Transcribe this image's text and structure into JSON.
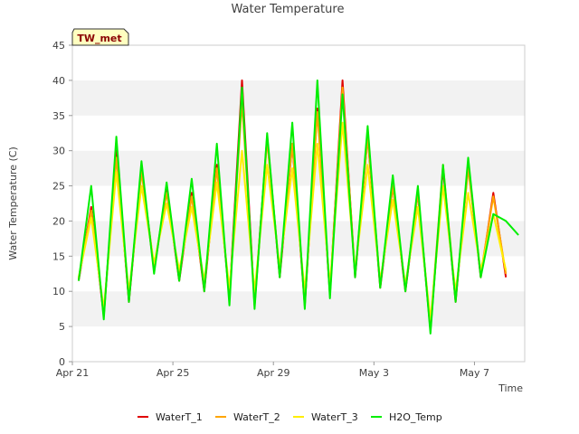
{
  "chart_data": {
    "type": "line",
    "title": "Water Temperature",
    "xlabel": "Time",
    "ylabel": "Water Temperature (C)",
    "site_badge": "TW_met",
    "ylim": [
      0,
      45
    ],
    "yticks": [
      0,
      5,
      10,
      15,
      20,
      25,
      30,
      35,
      40,
      45
    ],
    "xlim": [
      "2024-04-21",
      "2024-05-09"
    ],
    "xticks": [
      {
        "date": "2024-04-21",
        "label": "Apr 21"
      },
      {
        "date": "2024-04-25",
        "label": "Apr 25"
      },
      {
        "date": "2024-04-29",
        "label": "Apr 29"
      },
      {
        "date": "2024-05-03",
        "label": "May 3"
      },
      {
        "date": "2024-05-07",
        "label": "May 7"
      }
    ],
    "grid": "horizontal bands",
    "legend_position": "bottom",
    "series": [
      {
        "name": "WaterT_1",
        "color": "#e00000",
        "x": [
          "2024-04-21T06:00",
          "2024-04-21T18:00",
          "2024-04-22T06:00",
          "2024-04-22T18:00",
          "2024-04-23T06:00",
          "2024-04-23T18:00",
          "2024-04-24T06:00",
          "2024-04-24T18:00",
          "2024-04-25T06:00",
          "2024-04-25T18:00",
          "2024-04-26T06:00",
          "2024-04-26T18:00",
          "2024-04-27T06:00",
          "2024-04-27T18:00",
          "2024-04-28T06:00",
          "2024-04-28T18:00",
          "2024-04-29T06:00",
          "2024-04-29T18:00",
          "2024-04-30T06:00",
          "2024-04-30T18:00",
          "2024-05-01T06:00",
          "2024-05-01T18:00",
          "2024-05-02T06:00",
          "2024-05-02T18:00",
          "2024-05-03T06:00",
          "2024-05-03T18:00",
          "2024-05-04T06:00",
          "2024-05-04T18:00",
          "2024-05-05T06:00",
          "2024-05-05T18:00",
          "2024-05-06T06:00",
          "2024-05-06T18:00",
          "2024-05-07T06:00",
          "2024-05-07T18:00",
          "2024-05-08T06:00",
          "2024-05-08T18:00"
        ],
        "y": [
          11.5,
          22,
          6.5,
          30,
          8.5,
          27.5,
          13,
          24.5,
          11.5,
          24,
          10,
          28,
          9,
          40,
          8,
          32,
          12,
          31,
          8,
          36,
          9.5,
          40,
          12,
          32,
          10.5,
          25,
          10,
          24,
          4.5,
          27.5,
          8.5,
          28,
          12,
          24,
          12,
          null
        ]
      },
      {
        "name": "WaterT_2",
        "color": "#ffa500",
        "x": [
          "2024-04-21T06:00",
          "2024-04-21T18:00",
          "2024-04-22T06:00",
          "2024-04-22T18:00",
          "2024-04-23T06:00",
          "2024-04-23T18:00",
          "2024-04-24T06:00",
          "2024-04-24T18:00",
          "2024-04-25T06:00",
          "2024-04-25T18:00",
          "2024-04-26T06:00",
          "2024-04-26T18:00",
          "2024-04-27T06:00",
          "2024-04-27T18:00",
          "2024-04-28T06:00",
          "2024-04-28T18:00",
          "2024-04-29T06:00",
          "2024-04-29T18:00",
          "2024-04-30T06:00",
          "2024-04-30T18:00",
          "2024-05-01T06:00",
          "2024-05-01T18:00",
          "2024-05-02T06:00",
          "2024-05-02T18:00",
          "2024-05-03T06:00",
          "2024-05-03T18:00",
          "2024-05-04T06:00",
          "2024-05-04T18:00",
          "2024-05-05T06:00",
          "2024-05-05T18:00",
          "2024-05-06T06:00",
          "2024-05-06T18:00",
          "2024-05-07T06:00",
          "2024-05-07T18:00",
          "2024-05-08T06:00",
          "2024-05-08T18:00"
        ],
        "y": [
          11.8,
          21.5,
          7,
          29,
          9,
          27,
          13.5,
          24,
          12,
          23.5,
          10.5,
          27.5,
          9.5,
          37,
          8.5,
          31.5,
          12.5,
          31,
          8.5,
          35.5,
          10,
          39,
          12.5,
          32,
          11,
          25,
          10.5,
          24,
          5,
          28,
          9,
          27.5,
          12.5,
          23.5,
          12.5,
          null
        ]
      },
      {
        "name": "WaterT_3",
        "color": "#ffee00",
        "x": [
          "2024-04-21T06:00",
          "2024-04-21T18:00",
          "2024-04-22T06:00",
          "2024-04-22T18:00",
          "2024-04-23T06:00",
          "2024-04-23T18:00",
          "2024-04-24T06:00",
          "2024-04-24T18:00",
          "2024-04-25T06:00",
          "2024-04-25T18:00",
          "2024-04-26T06:00",
          "2024-04-26T18:00",
          "2024-04-27T06:00",
          "2024-04-27T18:00",
          "2024-04-28T06:00",
          "2024-04-28T18:00",
          "2024-04-29T06:00",
          "2024-04-29T18:00",
          "2024-04-30T06:00",
          "2024-04-30T18:00",
          "2024-05-01T06:00",
          "2024-05-01T18:00",
          "2024-05-02T06:00",
          "2024-05-02T18:00",
          "2024-05-03T06:00",
          "2024-05-03T18:00",
          "2024-05-04T06:00",
          "2024-05-04T18:00",
          "2024-05-05T06:00",
          "2024-05-05T18:00",
          "2024-05-06T06:00",
          "2024-05-06T18:00",
          "2024-05-07T06:00",
          "2024-05-07T18:00",
          "2024-05-08T06:00",
          "2024-05-08T18:00"
        ],
        "y": [
          12,
          20.5,
          7.5,
          27,
          10,
          25,
          14,
          22.5,
          13,
          22,
          11.5,
          25.5,
          10.5,
          30,
          10,
          28,
          13.5,
          27.5,
          10,
          31,
          11,
          34,
          13,
          28,
          11.5,
          23,
          11,
          22,
          6,
          25,
          10,
          24,
          13,
          21,
          13,
          null
        ]
      },
      {
        "name": "H2O_Temp",
        "color": "#00ee00",
        "x": [
          "2024-04-21T06:00",
          "2024-04-21T18:00",
          "2024-04-22T06:00",
          "2024-04-22T18:00",
          "2024-04-23T06:00",
          "2024-04-23T18:00",
          "2024-04-24T06:00",
          "2024-04-24T18:00",
          "2024-04-25T06:00",
          "2024-04-25T18:00",
          "2024-04-26T06:00",
          "2024-04-26T18:00",
          "2024-04-27T06:00",
          "2024-04-27T18:00",
          "2024-04-28T06:00",
          "2024-04-28T18:00",
          "2024-04-29T06:00",
          "2024-04-29T18:00",
          "2024-04-30T06:00",
          "2024-04-30T18:00",
          "2024-05-01T06:00",
          "2024-05-01T18:00",
          "2024-05-02T06:00",
          "2024-05-02T18:00",
          "2024-05-03T06:00",
          "2024-05-03T18:00",
          "2024-05-04T06:00",
          "2024-05-04T18:00",
          "2024-05-05T06:00",
          "2024-05-05T18:00",
          "2024-05-06T06:00",
          "2024-05-06T18:00",
          "2024-05-07T06:00",
          "2024-05-07T18:00",
          "2024-05-08T06:00",
          "2024-05-08T18:00"
        ],
        "y": [
          11.5,
          25,
          6,
          32,
          8.5,
          28.5,
          12.5,
          25.5,
          11.5,
          26,
          10,
          31,
          8,
          39,
          7.5,
          32.5,
          12,
          34,
          7.5,
          40,
          9,
          38,
          12,
          33.5,
          10.5,
          26.5,
          10,
          25,
          4,
          28,
          8.5,
          29,
          12,
          21,
          20,
          18
        ]
      }
    ]
  }
}
